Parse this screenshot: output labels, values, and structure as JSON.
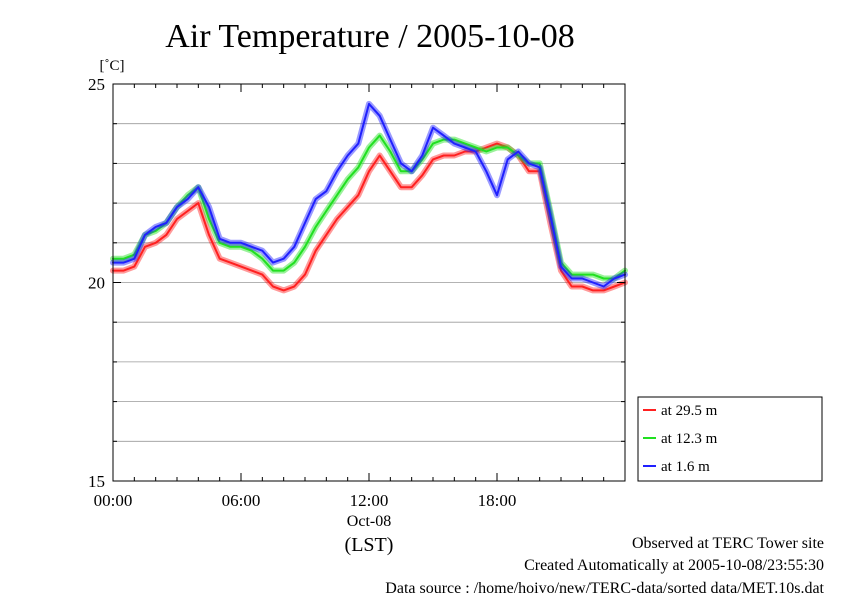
{
  "chart_data": {
    "type": "line",
    "title": "Air Temperature / 2005-10-08",
    "ylabel": "[˚C]",
    "xlabel": "(LST)",
    "date_label": "Oct-08",
    "xlim": [
      0,
      24
    ],
    "ylim": [
      15,
      25
    ],
    "x_ticks": [
      {
        "value": 0,
        "label": "00:00"
      },
      {
        "value": 6,
        "label": "06:00"
      },
      {
        "value": 12,
        "label": "12:00"
      },
      {
        "value": 18,
        "label": "18:00"
      }
    ],
    "y_ticks": [
      {
        "value": 15,
        "label": "15"
      },
      {
        "value": 20,
        "label": "20"
      },
      {
        "value": 25,
        "label": "25"
      }
    ],
    "grid": true,
    "legend_position": "right-bottom",
    "series": [
      {
        "name": "at 29.5 m",
        "color": "#ff2020",
        "x": [
          0,
          0.5,
          1,
          1.5,
          2,
          2.5,
          3,
          3.5,
          4,
          4.5,
          5,
          5.5,
          6,
          6.5,
          7,
          7.5,
          8,
          8.5,
          9,
          9.5,
          10,
          10.5,
          11,
          11.5,
          12,
          12.5,
          13,
          13.5,
          14,
          14.5,
          15,
          15.5,
          16,
          16.5,
          17,
          17.5,
          18,
          18.5,
          19,
          19.5,
          20,
          20.5,
          21,
          21.5,
          22,
          22.5,
          23,
          23.5,
          24
        ],
        "y": [
          20.3,
          20.3,
          20.4,
          20.9,
          21.0,
          21.2,
          21.6,
          21.8,
          22.0,
          21.2,
          20.6,
          20.5,
          20.4,
          20.3,
          20.2,
          19.9,
          19.8,
          19.9,
          20.2,
          20.8,
          21.2,
          21.6,
          21.9,
          22.2,
          22.8,
          23.2,
          22.8,
          22.4,
          22.4,
          22.7,
          23.1,
          23.2,
          23.2,
          23.3,
          23.3,
          23.4,
          23.5,
          23.4,
          23.2,
          22.8,
          22.8,
          21.5,
          20.3,
          19.9,
          19.9,
          19.8,
          19.8,
          19.9,
          20.0
        ]
      },
      {
        "name": "at 12.3 m",
        "color": "#20e020",
        "x": [
          0,
          0.5,
          1,
          1.5,
          2,
          2.5,
          3,
          3.5,
          4,
          4.5,
          5,
          5.5,
          6,
          6.5,
          7,
          7.5,
          8,
          8.5,
          9,
          9.5,
          10,
          10.5,
          11,
          11.5,
          12,
          12.5,
          13,
          13.5,
          14,
          14.5,
          15,
          15.5,
          16,
          16.5,
          17,
          17.5,
          18,
          18.5,
          19,
          19.5,
          20,
          20.5,
          21,
          21.5,
          22,
          22.5,
          23,
          23.5,
          24
        ],
        "y": [
          20.6,
          20.6,
          20.7,
          21.2,
          21.3,
          21.5,
          21.9,
          22.2,
          22.4,
          21.6,
          21.0,
          20.9,
          20.9,
          20.8,
          20.6,
          20.3,
          20.3,
          20.5,
          20.9,
          21.4,
          21.8,
          22.2,
          22.6,
          22.9,
          23.4,
          23.7,
          23.3,
          22.8,
          22.8,
          23.1,
          23.5,
          23.6,
          23.6,
          23.5,
          23.4,
          23.3,
          23.4,
          23.4,
          23.2,
          23.0,
          23.0,
          21.8,
          20.5,
          20.2,
          20.2,
          20.2,
          20.1,
          20.1,
          20.3
        ]
      },
      {
        "name": "at 1.6 m",
        "color": "#2020ff",
        "x": [
          0,
          0.5,
          1,
          1.5,
          2,
          2.5,
          3,
          3.5,
          4,
          4.5,
          5,
          5.5,
          6,
          6.5,
          7,
          7.5,
          8,
          8.5,
          9,
          9.5,
          10,
          10.5,
          11,
          11.5,
          12,
          12.5,
          13,
          13.5,
          14,
          14.5,
          15,
          15.5,
          16,
          16.5,
          17,
          17.5,
          18,
          18.5,
          19,
          19.5,
          20,
          20.5,
          21,
          21.5,
          22,
          22.5,
          23,
          23.5,
          24
        ],
        "y": [
          20.5,
          20.5,
          20.6,
          21.2,
          21.4,
          21.5,
          21.9,
          22.1,
          22.4,
          21.9,
          21.1,
          21.0,
          21.0,
          20.9,
          20.8,
          20.5,
          20.6,
          20.9,
          21.5,
          22.1,
          22.3,
          22.8,
          23.2,
          23.5,
          24.5,
          24.2,
          23.6,
          23.0,
          22.8,
          23.2,
          23.9,
          23.7,
          23.5,
          23.4,
          23.3,
          22.8,
          22.2,
          23.1,
          23.3,
          23.0,
          22.9,
          21.7,
          20.4,
          20.1,
          20.1,
          20.0,
          19.9,
          20.1,
          20.2
        ]
      }
    ]
  },
  "footer": {
    "observed": "Observed at TERC Tower site",
    "created": "Created Automatically at 2005-10-08/23:55:30",
    "source": "Data source : /home/hoivo/new/TERC-data/sorted  data/MET.10s.dat"
  }
}
